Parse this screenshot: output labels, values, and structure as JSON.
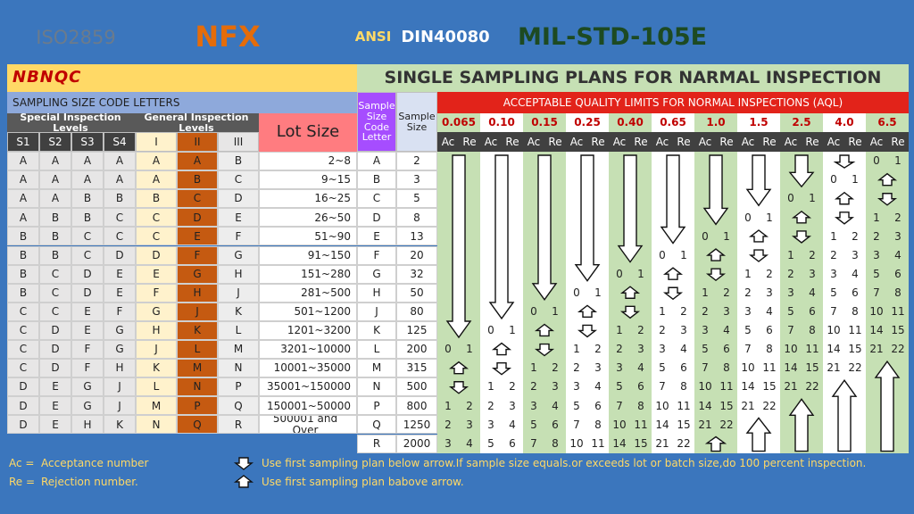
{
  "header": {
    "standards": [
      "ISO2859",
      "NFX",
      "ANSI",
      "DIN40080",
      "MIL-STD-105E"
    ]
  },
  "logo": "NBNQC",
  "title": "SINGLE SAMPLING PLANS FOR NARMAL INSPECTION",
  "code_letters_table": {
    "title": "SAMPLING SIZE CODE LETTERS",
    "special_label": "Special Inspection Levels",
    "general_label": "General Inspection Levels",
    "levels": [
      "S1",
      "S2",
      "S3",
      "S4",
      "I",
      "II",
      "III"
    ],
    "lot_size_label": "Lot Size",
    "rows": [
      {
        "letters": [
          "A",
          "A",
          "A",
          "A",
          "A",
          "A",
          "B"
        ],
        "lot_size": "2~8"
      },
      {
        "letters": [
          "A",
          "A",
          "A",
          "A",
          "A",
          "B",
          "C"
        ],
        "lot_size": "9~15"
      },
      {
        "letters": [
          "A",
          "A",
          "B",
          "B",
          "B",
          "C",
          "D"
        ],
        "lot_size": "16~25"
      },
      {
        "letters": [
          "A",
          "B",
          "B",
          "C",
          "C",
          "D",
          "E"
        ],
        "lot_size": "26~50"
      },
      {
        "letters": [
          "B",
          "B",
          "C",
          "C",
          "C",
          "E",
          "F"
        ],
        "lot_size": "51~90"
      },
      {
        "letters": [
          "B",
          "B",
          "C",
          "D",
          "D",
          "F",
          "G"
        ],
        "lot_size": "91~150"
      },
      {
        "letters": [
          "B",
          "C",
          "D",
          "E",
          "E",
          "G",
          "H"
        ],
        "lot_size": "151~280"
      },
      {
        "letters": [
          "B",
          "C",
          "D",
          "E",
          "F",
          "H",
          "J"
        ],
        "lot_size": "281~500"
      },
      {
        "letters": [
          "C",
          "C",
          "E",
          "F",
          "G",
          "J",
          "K"
        ],
        "lot_size": "501~1200"
      },
      {
        "letters": [
          "C",
          "D",
          "E",
          "G",
          "H",
          "K",
          "L"
        ],
        "lot_size": "1201~3200"
      },
      {
        "letters": [
          "C",
          "D",
          "F",
          "G",
          "J",
          "L",
          "M"
        ],
        "lot_size": "3201~10000"
      },
      {
        "letters": [
          "C",
          "D",
          "F",
          "H",
          "K",
          "M",
          "N"
        ],
        "lot_size": "10001~35000"
      },
      {
        "letters": [
          "D",
          "E",
          "G",
          "J",
          "L",
          "N",
          "P"
        ],
        "lot_size": "35001~150000"
      },
      {
        "letters": [
          "D",
          "E",
          "G",
          "J",
          "M",
          "P",
          "Q"
        ],
        "lot_size": "150001~50000"
      },
      {
        "letters": [
          "D",
          "E",
          "H",
          "K",
          "N",
          "Q",
          "R"
        ],
        "lot_size": "500001 and Over"
      }
    ]
  },
  "plan_table": {
    "code_letter_label": "Sample Size Code Letter",
    "sample_size_label": "Sample Size",
    "aql_title": "ACCEPTABLE QUALITY LIMITS FOR NORMAL INSPECTIONS (AQL)",
    "aql_values": [
      "0.065",
      "0.10",
      "0.15",
      "0.25",
      "0.40",
      "0.65",
      "1.0",
      "1.5",
      "2.5",
      "4.0",
      "6.5"
    ],
    "ac_label": "Ac",
    "re_label": "Re",
    "rows": [
      {
        "code": "A",
        "sample_size": 2,
        "plans": [
          null,
          null,
          null,
          null,
          null,
          null,
          null,
          null,
          null,
          null,
          [
            0,
            1
          ]
        ]
      },
      {
        "code": "B",
        "sample_size": 3,
        "plans": [
          null,
          null,
          null,
          null,
          null,
          null,
          null,
          null,
          null,
          [
            0,
            1
          ],
          null
        ]
      },
      {
        "code": "C",
        "sample_size": 5,
        "plans": [
          null,
          null,
          null,
          null,
          null,
          null,
          null,
          null,
          [
            0,
            1
          ],
          null,
          null
        ]
      },
      {
        "code": "D",
        "sample_size": 8,
        "plans": [
          null,
          null,
          null,
          null,
          null,
          null,
          null,
          [
            0,
            1
          ],
          null,
          null,
          [
            1,
            2
          ]
        ]
      },
      {
        "code": "E",
        "sample_size": 13,
        "plans": [
          null,
          null,
          null,
          null,
          null,
          null,
          [
            0,
            1
          ],
          null,
          null,
          [
            1,
            2
          ],
          [
            2,
            3
          ]
        ]
      },
      {
        "code": "F",
        "sample_size": 20,
        "plans": [
          null,
          null,
          null,
          null,
          null,
          [
            0,
            1
          ],
          null,
          null,
          [
            1,
            2
          ],
          [
            2,
            3
          ],
          [
            3,
            4
          ]
        ]
      },
      {
        "code": "G",
        "sample_size": 32,
        "plans": [
          null,
          null,
          null,
          null,
          [
            0,
            1
          ],
          null,
          null,
          [
            1,
            2
          ],
          [
            2,
            3
          ],
          [
            3,
            4
          ],
          [
            5,
            6
          ]
        ]
      },
      {
        "code": "H",
        "sample_size": 50,
        "plans": [
          null,
          null,
          null,
          [
            0,
            1
          ],
          null,
          null,
          [
            1,
            2
          ],
          [
            2,
            3
          ],
          [
            3,
            4
          ],
          [
            5,
            6
          ],
          [
            7,
            8
          ]
        ]
      },
      {
        "code": "J",
        "sample_size": 80,
        "plans": [
          null,
          null,
          [
            0,
            1
          ],
          null,
          null,
          [
            1,
            2
          ],
          [
            2,
            3
          ],
          [
            3,
            4
          ],
          [
            5,
            6
          ],
          [
            7,
            8
          ],
          [
            10,
            11
          ]
        ]
      },
      {
        "code": "K",
        "sample_size": 125,
        "plans": [
          null,
          [
            0,
            1
          ],
          null,
          null,
          [
            1,
            2
          ],
          [
            2,
            3
          ],
          [
            3,
            4
          ],
          [
            5,
            6
          ],
          [
            7,
            8
          ],
          [
            10,
            11
          ],
          [
            14,
            15
          ]
        ]
      },
      {
        "code": "L",
        "sample_size": 200,
        "plans": [
          [
            0,
            1
          ],
          null,
          null,
          [
            1,
            2
          ],
          [
            2,
            3
          ],
          [
            3,
            4
          ],
          [
            5,
            6
          ],
          [
            7,
            8
          ],
          [
            10,
            11
          ],
          [
            14,
            15
          ],
          [
            21,
            22
          ]
        ]
      },
      {
        "code": "M",
        "sample_size": 315,
        "plans": [
          null,
          null,
          [
            1,
            2
          ],
          [
            2,
            3
          ],
          [
            3,
            4
          ],
          [
            5,
            6
          ],
          [
            7,
            8
          ],
          [
            10,
            11
          ],
          [
            14,
            15
          ],
          [
            21,
            22
          ],
          null
        ]
      },
      {
        "code": "N",
        "sample_size": 500,
        "plans": [
          null,
          [
            1,
            2
          ],
          [
            2,
            3
          ],
          [
            3,
            4
          ],
          [
            5,
            6
          ],
          [
            7,
            8
          ],
          [
            10,
            11
          ],
          [
            14,
            15
          ],
          [
            21,
            22
          ],
          null,
          null
        ]
      },
      {
        "code": "P",
        "sample_size": 800,
        "plans": [
          [
            1,
            2
          ],
          [
            2,
            3
          ],
          [
            3,
            4
          ],
          [
            5,
            6
          ],
          [
            7,
            8
          ],
          [
            10,
            11
          ],
          [
            14,
            15
          ],
          [
            21,
            22
          ],
          null,
          null,
          null
        ]
      },
      {
        "code": "Q",
        "sample_size": 1250,
        "plans": [
          [
            2,
            3
          ],
          [
            3,
            4
          ],
          [
            5,
            6
          ],
          [
            7,
            8
          ],
          [
            10,
            11
          ],
          [
            14,
            15
          ],
          [
            21,
            22
          ],
          null,
          null,
          null,
          null
        ]
      },
      {
        "code": "R",
        "sample_size": 2000,
        "plans": [
          [
            3,
            4
          ],
          [
            5,
            6
          ],
          [
            7,
            8
          ],
          [
            10,
            11
          ],
          [
            14,
            15
          ],
          [
            21,
            22
          ],
          null,
          null,
          null,
          null,
          null
        ]
      }
    ]
  },
  "legend": {
    "ac": "Ac =",
    "ac_text": "Acceptance number",
    "re": "Re =",
    "re_text": "Rejection number.",
    "down_text": "Use first sampling plan below arrow.If sample size equals.or exceeds lot or batch size,do 100 percent inspection.",
    "up_text": "Use first sampling plan babove arrow."
  }
}
